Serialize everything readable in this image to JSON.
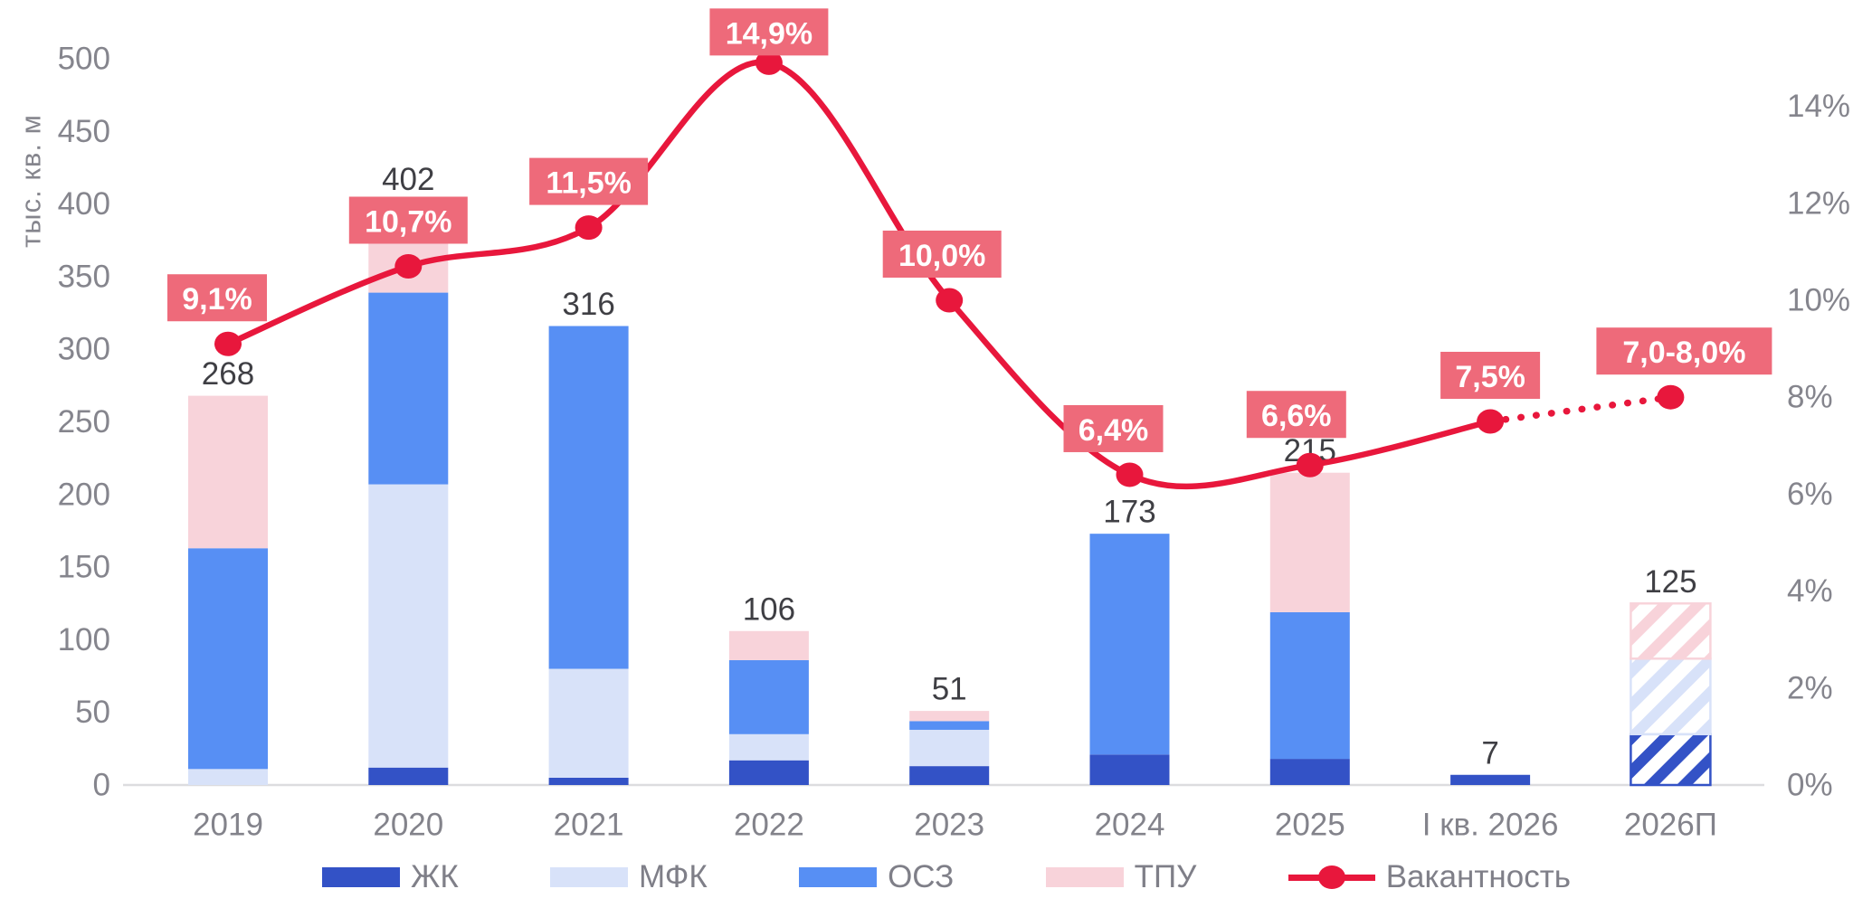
{
  "chart_data": {
    "type": "combo-stacked-bar-line",
    "categories": [
      "2019",
      "2020",
      "2021",
      "2022",
      "2023",
      "2024",
      "2025",
      "I кв. 2026",
      "2026П"
    ],
    "series": [
      {
        "name": "ЖК",
        "color": "#3352c6",
        "values": [
          0,
          12,
          5,
          17,
          13,
          21,
          18,
          7,
          35
        ]
      },
      {
        "name": "МФК",
        "color": "#d8e2f9",
        "values": [
          11,
          195,
          75,
          18,
          25,
          0,
          0,
          0,
          52
        ]
      },
      {
        "name": "ОСЗ",
        "color": "#578ff4",
        "values": [
          152,
          132,
          236,
          51,
          6,
          152,
          101,
          0,
          0
        ]
      },
      {
        "name": "ТПУ",
        "color": "#f8d3da",
        "values": [
          105,
          63,
          0,
          20,
          7,
          0,
          96,
          0,
          38
        ]
      }
    ],
    "totals": [
      "268",
      "402",
      "316",
      "106",
      "51",
      "173",
      "215",
      "7",
      "125"
    ],
    "total_values": [
      268,
      402,
      316,
      106,
      51,
      173,
      215,
      7,
      125
    ],
    "hatched_category_index": 8,
    "line": {
      "name": "Вакантность",
      "color": "#e8173c",
      "values": [
        9.1,
        10.7,
        11.5,
        14.9,
        10.0,
        6.4,
        6.6,
        7.5,
        8.0
      ],
      "labels": [
        "9,1%",
        "10,7%",
        "11,5%",
        "14,9%",
        "10,0%",
        "6,4%",
        "6,6%",
        "7,5%",
        "7,0-8,0%"
      ],
      "label_offsets": [
        {
          "dx": -12,
          "gap": 25
        },
        {
          "dx": 0,
          "gap": 25
        },
        {
          "dx": 0,
          "gap": 25
        },
        {
          "dx": 0,
          "gap": 8
        },
        {
          "dx": -8,
          "gap": 25
        },
        {
          "dx": -18,
          "gap": 25
        },
        {
          "dx": -15,
          "gap": 30
        },
        {
          "dx": 0,
          "gap": 25
        },
        {
          "dx": 15,
          "gap": 25
        }
      ],
      "dotted_from_index": 7
    },
    "label_box_color": "#ee6a7a",
    "label_text_color": "#ffffff",
    "left_axis": {
      "title": "тыс. кв. м",
      "min": 0,
      "max": 500,
      "step": 50,
      "tick_labels": [
        "0",
        "50",
        "100",
        "150",
        "200",
        "250",
        "300",
        "350",
        "400",
        "450",
        "500"
      ]
    },
    "right_axis": {
      "min": 0,
      "max": 15,
      "step": 2,
      "tick_labels": [
        "0%",
        "2%",
        "4%",
        "6%",
        "8%",
        "10%",
        "12%",
        "14%"
      ]
    },
    "colors": {
      "axis_text": "#85858d",
      "category_text": "#83838b",
      "value_text": "#3f3f44",
      "baseline": "#dcdcdf",
      "legend_text": "#7f7f88"
    },
    "grid": "off",
    "legend_position": "bottom"
  }
}
